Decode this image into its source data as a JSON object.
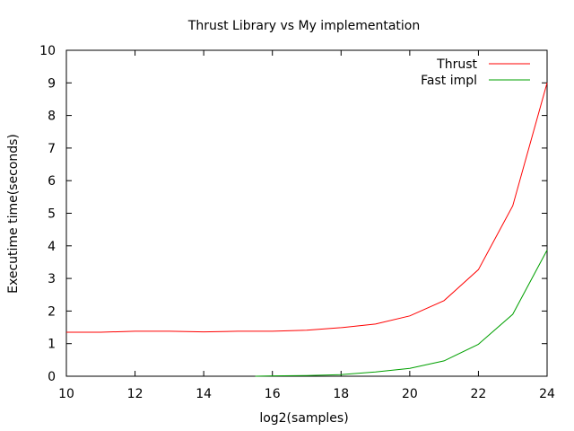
{
  "chart_data": {
    "type": "line",
    "title": "Thrust Library vs My implementation",
    "xlabel": "log2(samples)",
    "ylabel": "Executime time(seconds)",
    "xlim": [
      10,
      24
    ],
    "ylim": [
      0,
      10
    ],
    "x_ticks": [
      "10",
      "12",
      "14",
      "16",
      "18",
      "20",
      "22",
      "24"
    ],
    "y_ticks": [
      "0",
      "1",
      "2",
      "3",
      "4",
      "5",
      "6",
      "7",
      "8",
      "9",
      "10"
    ],
    "grid": false,
    "legend_position": "top-right",
    "series": [
      {
        "name": "Thrust",
        "color": "#ff0000",
        "x": [
          10,
          11,
          12,
          13,
          14,
          15,
          16,
          17,
          18,
          19,
          20,
          21,
          22,
          23,
          24
        ],
        "y": [
          1.35,
          1.35,
          1.38,
          1.38,
          1.36,
          1.38,
          1.38,
          1.41,
          1.49,
          1.6,
          1.85,
          2.32,
          3.27,
          5.23,
          9.0
        ]
      },
      {
        "name": "Fast impl",
        "color": "#00a000",
        "x": [
          15.5,
          16,
          17,
          18,
          19,
          20,
          21,
          22,
          23,
          24
        ],
        "y": [
          0.0,
          0.01,
          0.02,
          0.05,
          0.13,
          0.24,
          0.47,
          0.98,
          1.9,
          3.87
        ]
      }
    ]
  }
}
